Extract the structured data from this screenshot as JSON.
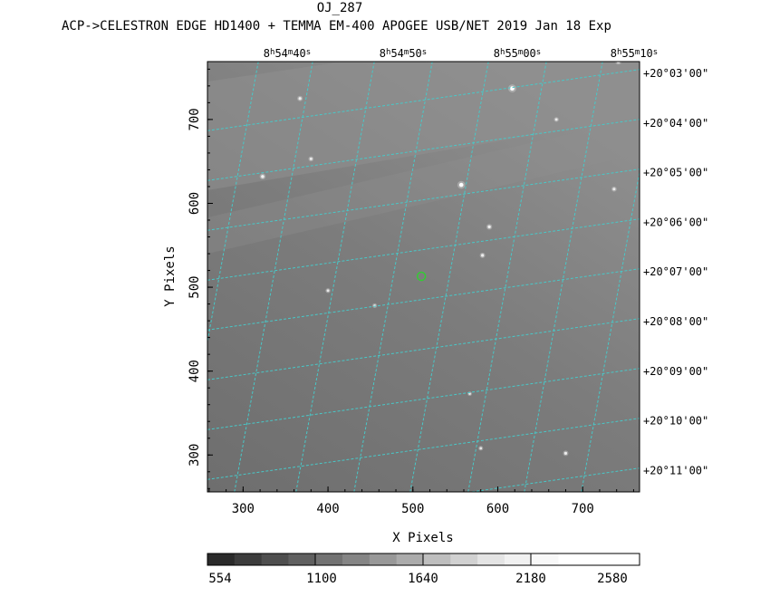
{
  "header": {
    "object": "OJ_287",
    "instrument_line": "ACP->CELESTRON EDGE HD1400 + TEMMA EM-400 APOGEE USB/NET   2019 Jan 18    Exp"
  },
  "chart_data": {
    "type": "heatmap",
    "xlabel": "X Pixels",
    "ylabel": "Y Pixels",
    "xlim": [
      258,
      767
    ],
    "ylim": [
      256,
      769
    ],
    "x_ticks": [
      300,
      400,
      500,
      600,
      700
    ],
    "y_ticks": [
      300,
      400,
      500,
      600,
      700
    ],
    "ra_labels": [
      {
        "h": "8",
        "m": "54",
        "s": "40"
      },
      {
        "h": "8",
        "m": "54",
        "s": "50"
      },
      {
        "h": "8",
        "m": "55",
        "s": "00"
      },
      {
        "h": "8",
        "m": "55",
        "s": "10"
      }
    ],
    "dec_labels": [
      "+20°03'00\"",
      "+20°04'00\"",
      "+20°05'00\"",
      "+20°06'00\"",
      "+20°07'00\"",
      "+20°08'00\"",
      "+20°09'00\"",
      "+20°10'00\"",
      "+20°11'00\""
    ],
    "target_marker": {
      "x": 510,
      "y": 513,
      "color": "#33cc33"
    },
    "stars": [
      {
        "x": 617,
        "y": 737,
        "b": 1.0
      },
      {
        "x": 557,
        "y": 622,
        "b": 0.95
      },
      {
        "x": 323,
        "y": 632,
        "b": 0.6
      },
      {
        "x": 367,
        "y": 725,
        "b": 0.5
      },
      {
        "x": 380,
        "y": 653,
        "b": 0.45
      },
      {
        "x": 590,
        "y": 572,
        "b": 0.55
      },
      {
        "x": 582,
        "y": 538,
        "b": 0.5
      },
      {
        "x": 737,
        "y": 617,
        "b": 0.45
      },
      {
        "x": 669,
        "y": 700,
        "b": 0.4
      },
      {
        "x": 742,
        "y": 769,
        "b": 0.6
      },
      {
        "x": 400,
        "y": 496,
        "b": 0.4
      },
      {
        "x": 455,
        "y": 478,
        "b": 0.35
      },
      {
        "x": 680,
        "y": 302,
        "b": 0.5
      },
      {
        "x": 580,
        "y": 308,
        "b": 0.35
      },
      {
        "x": 567,
        "y": 373,
        "b": 0.3
      }
    ],
    "grid_color": "#48c8c8",
    "colorbar": {
      "tick_labels": [
        "554",
        "1100",
        "1640",
        "2180",
        "2580"
      ],
      "steps": [
        "#2a2a2a",
        "#3c3c3c",
        "#4e4e4e",
        "#606060",
        "#727272",
        "#858585",
        "#989898",
        "#ababab",
        "#bebebe",
        "#d1d1d1",
        "#e4e4e4",
        "#f1f1f1",
        "#f8f8f8",
        "#ffffff",
        "#ffffff",
        "#ffffff"
      ]
    }
  }
}
